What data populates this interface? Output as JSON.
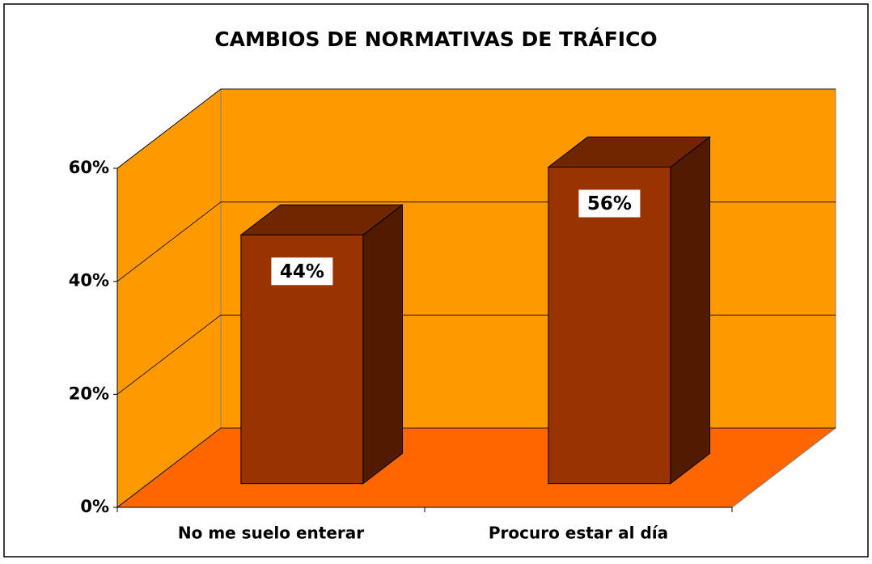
{
  "chart_data": {
    "type": "bar3d",
    "title": "CAMBIOS DE NORMATIVAS DE TRÁFICO",
    "categories": [
      "No me suelo enterar",
      "Procuro estar al día"
    ],
    "values": [
      44,
      56
    ],
    "value_labels": [
      "44%",
      "56%"
    ],
    "color": "#993300",
    "ylim": [
      0,
      60
    ],
    "yticks": [
      {
        "value": 0,
        "label": "0%"
      },
      {
        "value": 20,
        "label": "20%"
      },
      {
        "value": 40,
        "label": "40%"
      },
      {
        "value": 60,
        "label": "60%"
      }
    ],
    "grid": true
  }
}
